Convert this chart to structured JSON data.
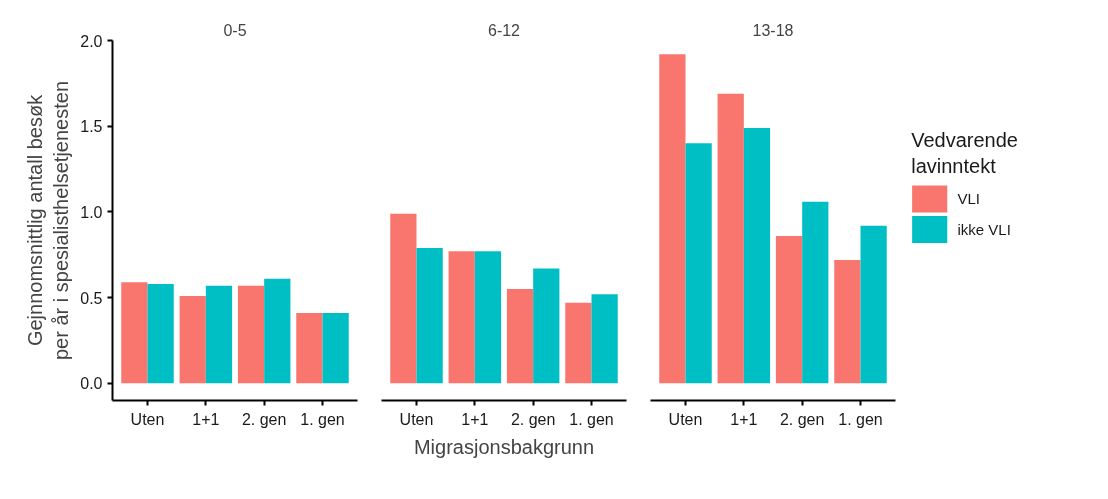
{
  "chart_data": [
    {
      "type": "bar",
      "title": "0-5",
      "ylabel": "Gejnnomsnittlig antall besøk\nper år i spesialisthelsetjenesten",
      "categories": [
        "Uten",
        "1+1",
        "2. gen",
        "1. gen"
      ],
      "series": [
        {
          "color": "#f8766d",
          "values": [
            0.59,
            0.51,
            0.57,
            0.41
          ]
        },
        {
          "color": "#00bfc4",
          "values": [
            0.58,
            0.57,
            0.61,
            0.41
          ]
        }
      ],
      "ylim": [
        -0.1,
        2.0
      ],
      "yticks": [
        {
          "value": 0,
          "label": "0.0"
        },
        0.5,
        {
          "value": 1,
          "label": "1.0"
        },
        1.5,
        {
          "value": 2,
          "label": "2.0"
        }
      ],
      "grid": false,
      "legend": false
    },
    {
      "type": "bar",
      "title": "6-12",
      "xlabel": "Migrasjonsbakgrunn",
      "categories": [
        "Uten",
        "1+1",
        "2. gen",
        "1. gen"
      ],
      "series": [
        {
          "color": "#f8766d",
          "values": [
            0.99,
            0.77,
            0.55,
            0.47
          ]
        },
        {
          "color": "#00bfc4",
          "values": [
            0.79,
            0.77,
            0.67,
            0.52
          ]
        }
      ],
      "ylim": [
        -0.1,
        2.0
      ],
      "tick_labels": "x",
      "grid": false,
      "legend": false
    },
    {
      "type": "bar",
      "title": "13-18",
      "legend_title": "Vedvarende\n lavinntekt",
      "categories": [
        "Uten",
        "1+1",
        "2. gen",
        "1. gen"
      ],
      "series": [
        {
          "name": "VLI",
          "color": "#f8766d",
          "values": [
            1.92,
            1.69,
            0.86,
            0.72
          ]
        },
        {
          "name": "ikke VLI",
          "color": "#00bfc4",
          "values": [
            1.4,
            1.49,
            1.06,
            0.92
          ]
        }
      ],
      "ylim": [
        -0.1,
        2.0
      ],
      "tick_labels": "x",
      "grid": false,
      "legend": "right"
    }
  ]
}
